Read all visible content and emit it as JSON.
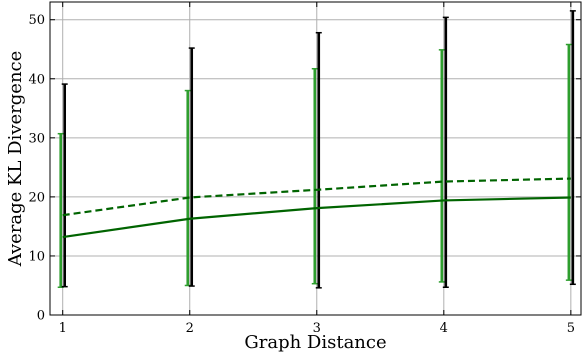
{
  "chart_data": {
    "type": "line",
    "title": "",
    "xlabel": "Graph Distance",
    "ylabel": "Average KL Divergence",
    "x": [
      1,
      2,
      3,
      4,
      5
    ],
    "xlim": [
      0.9,
      5.08
    ],
    "ylim": [
      0,
      53
    ],
    "xticks": [
      1,
      2,
      3,
      4,
      5
    ],
    "yticks": [
      0,
      10,
      20,
      30,
      40,
      50
    ],
    "grid": true,
    "legend": "none",
    "series": [
      {
        "style": "solid",
        "color": "#006400",
        "values": [
          13.2,
          16.3,
          18.1,
          19.4,
          19.9
        ],
        "error_low": [
          4.7,
          5.0,
          5.3,
          5.6,
          5.9
        ],
        "error_high": [
          30.7,
          38.0,
          41.7,
          44.9,
          45.8
        ],
        "error_color": "#2e9e2e"
      },
      {
        "style": "dashed",
        "color": "#006400",
        "values": [
          16.9,
          19.9,
          21.2,
          22.6,
          23.1
        ],
        "error_low": [
          4.8,
          4.9,
          4.6,
          4.7,
          5.2
        ],
        "error_high": [
          39.1,
          45.2,
          47.8,
          50.4,
          51.5
        ],
        "error_color": "#000000"
      }
    ]
  }
}
